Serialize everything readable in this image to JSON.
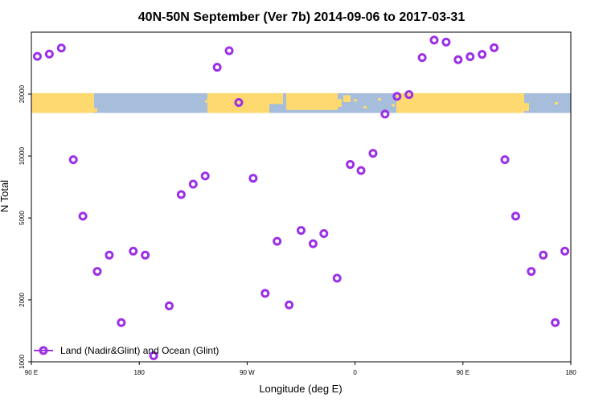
{
  "chart_data": {
    "type": "scatter",
    "title": "40N-50N September (Ver 7b)   2014-09-06 to 2017-03-31",
    "xlabel": "Longitude (deg E)",
    "ylabel": "N Total",
    "xlim": [
      90,
      540
    ],
    "ylim": [
      1000,
      40000
    ],
    "y_scale": "log",
    "x_ticks": [
      {
        "value": 90,
        "label": "90 E"
      },
      {
        "value": 180,
        "label": "180"
      },
      {
        "value": 270,
        "label": "90 W"
      },
      {
        "value": 360,
        "label": "0"
      },
      {
        "value": 450,
        "label": "90 E"
      },
      {
        "value": 540,
        "label": "180"
      }
    ],
    "y_ticks": [
      {
        "value": 1000,
        "label": "1000"
      },
      {
        "value": 2000,
        "label": "2000"
      },
      {
        "value": 5000,
        "label": "5000"
      },
      {
        "value": 10000,
        "label": "10000"
      },
      {
        "value": 20000,
        "label": "20000"
      }
    ],
    "map_band": {
      "y_range": [
        16200,
        20200
      ],
      "land_color": "#fdd96f",
      "ocean_color": "#a6bddb"
    },
    "series": [
      {
        "name": "Land (Nadir&Glint) and Ocean (Glint)",
        "color": "#9b30e8",
        "marker": "open-circle",
        "points": [
          [
            95,
            30500
          ],
          [
            105,
            31300
          ],
          [
            115,
            33500
          ],
          [
            125,
            9600
          ],
          [
            133,
            5100
          ],
          [
            145,
            2750
          ],
          [
            155,
            3300
          ],
          [
            165,
            1550
          ],
          [
            175,
            3450
          ],
          [
            185,
            3300
          ],
          [
            192,
            1070
          ],
          [
            205,
            1870
          ],
          [
            215,
            6500
          ],
          [
            225,
            7300
          ],
          [
            235,
            8000
          ],
          [
            245,
            27000
          ],
          [
            255,
            32500
          ],
          [
            263,
            18200
          ],
          [
            275,
            7800
          ],
          [
            285,
            2150
          ],
          [
            295,
            3850
          ],
          [
            305,
            1890
          ],
          [
            315,
            4350
          ],
          [
            325,
            3750
          ],
          [
            334,
            4200
          ],
          [
            345,
            2550
          ],
          [
            356,
            9100
          ],
          [
            365,
            8500
          ],
          [
            375,
            10300
          ],
          [
            385,
            16000
          ],
          [
            395,
            19500
          ],
          [
            405,
            19900
          ],
          [
            416,
            30100
          ],
          [
            426,
            36600
          ],
          [
            436,
            35800
          ],
          [
            446,
            29400
          ],
          [
            456,
            30400
          ],
          [
            466,
            31200
          ],
          [
            476,
            33600
          ],
          [
            485,
            9600
          ],
          [
            494,
            5100
          ],
          [
            507,
            2750
          ],
          [
            517,
            3300
          ],
          [
            527,
            1550
          ],
          [
            535,
            3450
          ]
        ]
      }
    ],
    "legend_position": "bottom-left",
    "grid": false
  }
}
